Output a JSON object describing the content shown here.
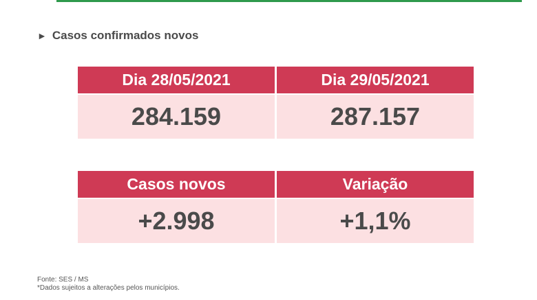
{
  "section": {
    "title": "Casos confirmados novos",
    "marker": "►"
  },
  "table1": {
    "headers": [
      "Dia 28/05/2021",
      "Dia 29/05/2021"
    ],
    "values": [
      "284.159",
      "287.157"
    ]
  },
  "table2": {
    "headers": [
      "Casos novos",
      "Variação"
    ],
    "values": [
      "+2.998",
      "+1,1%"
    ]
  },
  "footer": {
    "source": "Fonte: SES / MS",
    "note": "*Dados sujeitos a alterações pelos municípios."
  },
  "colors": {
    "header_bg": "#cf3a55",
    "cell_bg": "#fce0e2",
    "accent_line": "#2f9a4d"
  }
}
